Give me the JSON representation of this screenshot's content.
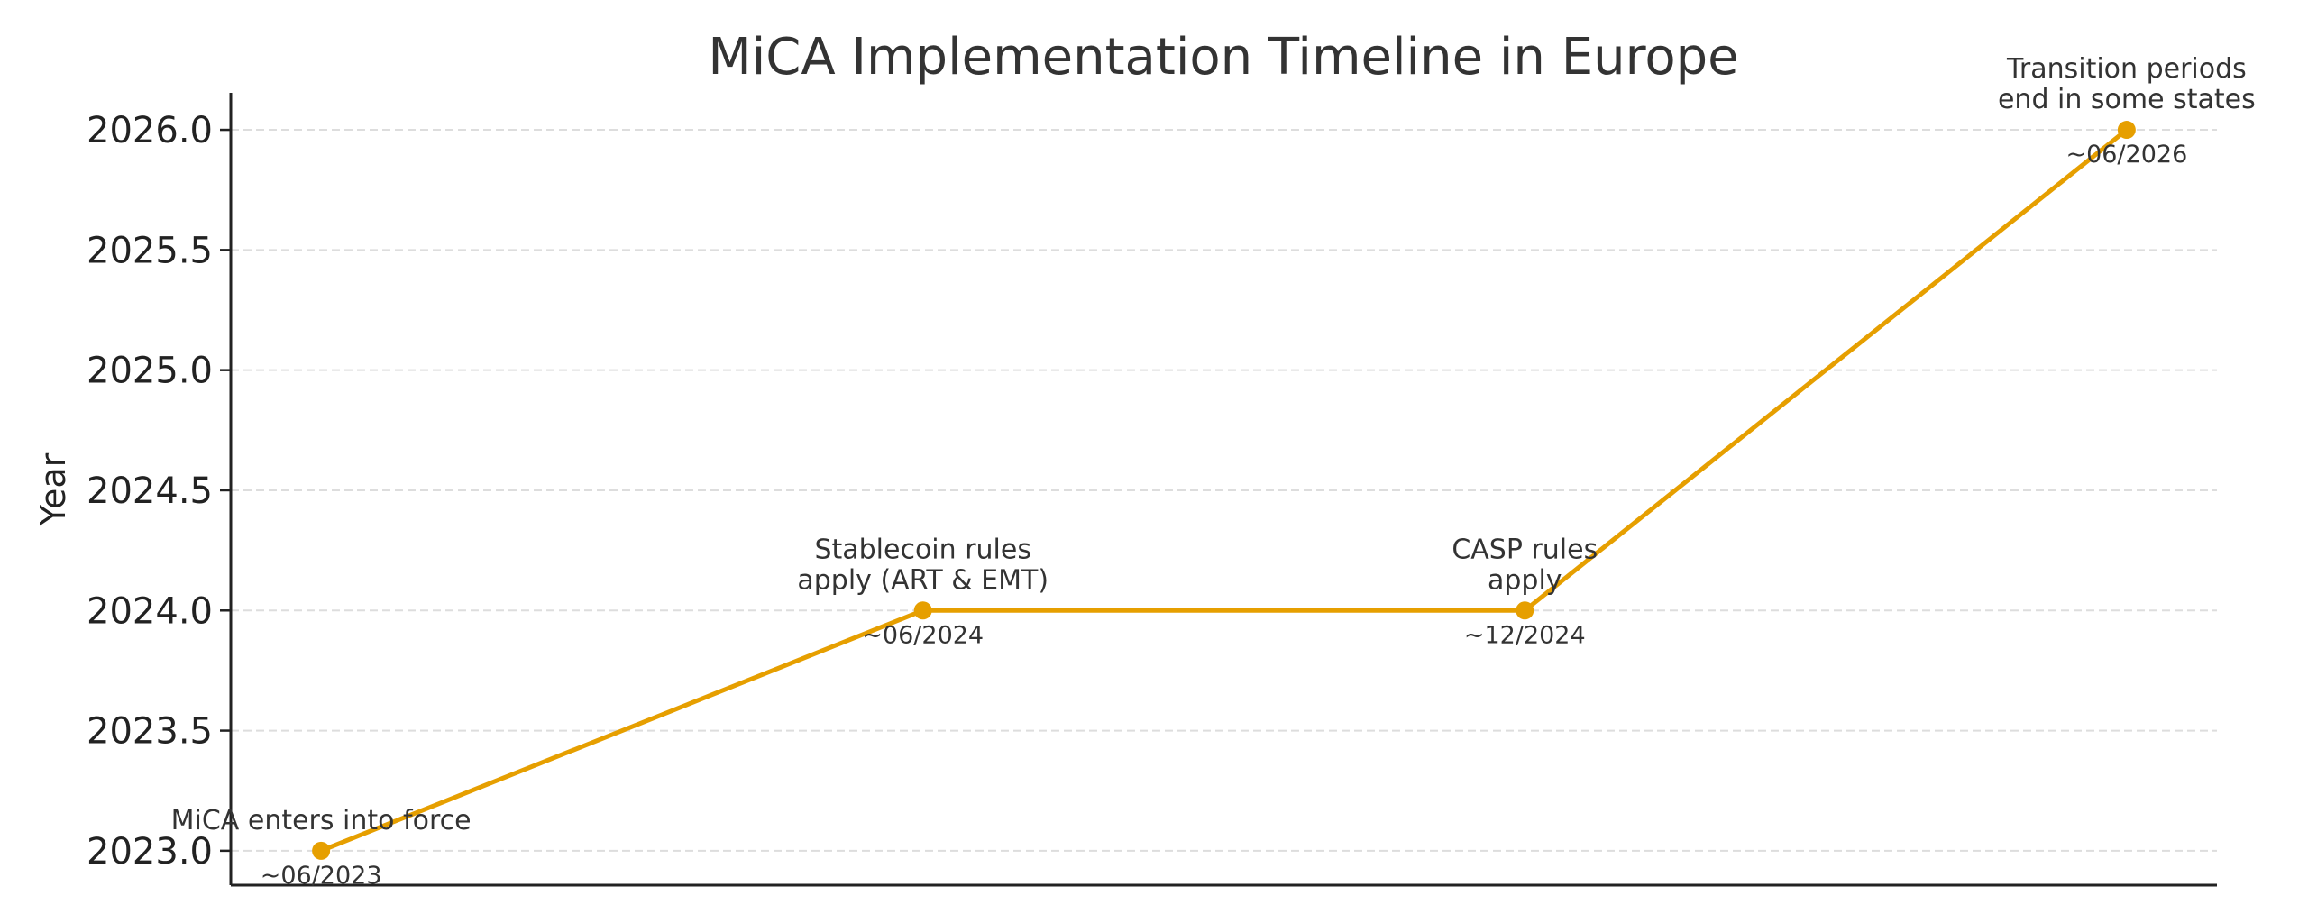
{
  "chart_data": {
    "type": "line",
    "title": "MiCA Implementation Timeline in Europe",
    "xlabel": "",
    "ylabel": "Year",
    "categories": [
      "~06/2023",
      "~06/2024",
      "~12/2024",
      "~06/2026"
    ],
    "values": [
      2023.0,
      2024.0,
      2024.0,
      2026.0
    ],
    "annotations": [
      "MiCA enters into force",
      "Stablecoin rules\napply (ART & EMT)",
      "CASP rules\napply",
      "Transition periods\nend in some states"
    ],
    "yticks": [
      "2023.0",
      "2023.5",
      "2024.0",
      "2024.5",
      "2025.0",
      "2025.5",
      "2026.0"
    ],
    "ylim": [
      2022.857,
      2026.154
    ],
    "xlim": [
      -0.15,
      3.15
    ],
    "grid": "horizontal dashed",
    "line_color": "#E69F00",
    "grid_color": "#dddddd"
  }
}
